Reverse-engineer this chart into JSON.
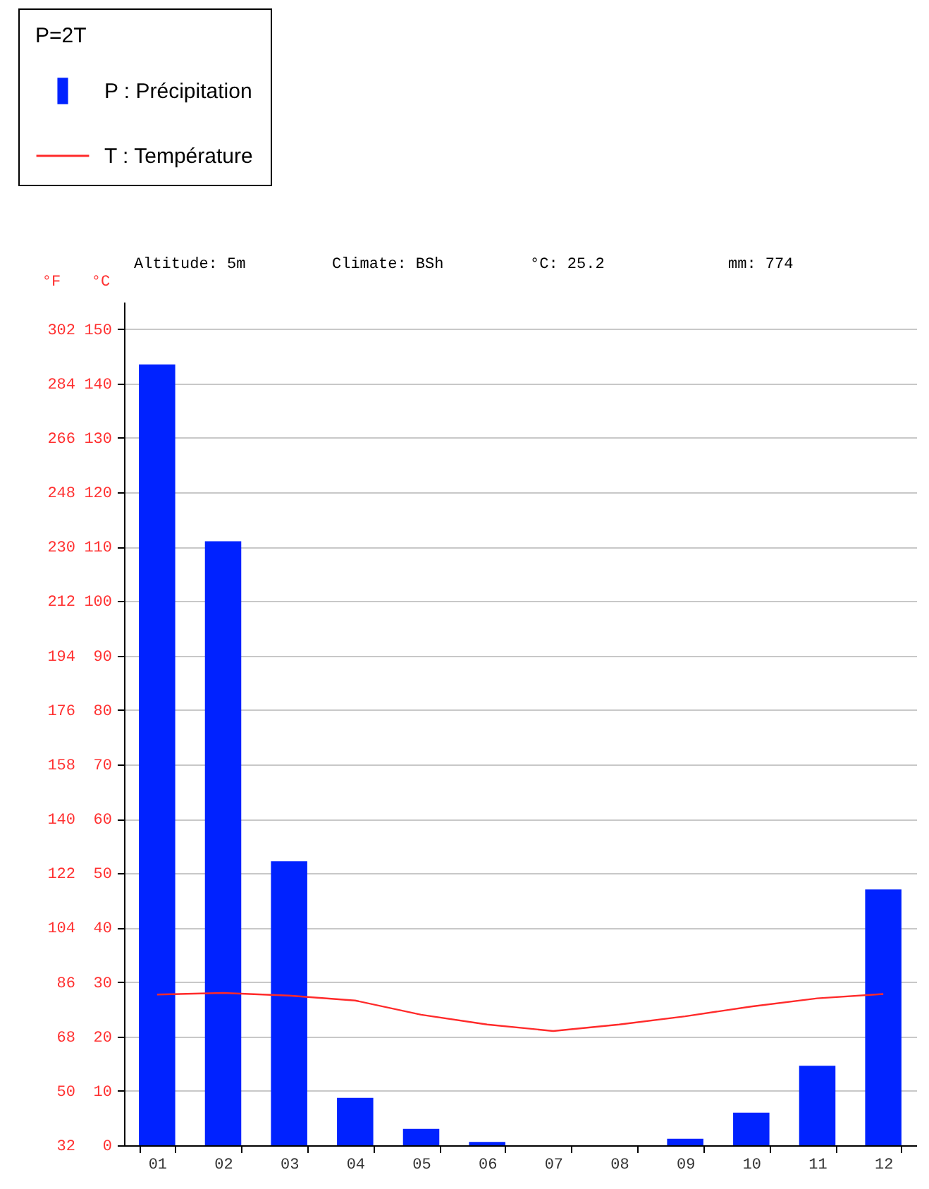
{
  "chart_data": {
    "type": "bar",
    "legend_title": "P=2T",
    "legend": "top left",
    "ylabel": "°C",
    "y2label": "°F",
    "grid": "y",
    "annotations": [
      "Altitude: 5m",
      "Climate: BSh",
      "°C: 25.2",
      "mm: 774"
    ],
    "categories": [
      "01",
      "02",
      "03",
      "04",
      "05",
      "06",
      "07",
      "08",
      "09",
      "10",
      "11",
      "12"
    ],
    "series": [
      {
        "name": "P : Précipitation",
        "color": "#0022ff",
        "values": [
          143.5,
          111,
          52.2,
          8.7,
          3,
          0.6,
          0,
          0,
          1.2,
          6,
          14.6,
          47
        ]
      },
      {
        "name": "T : Température",
        "type": "line",
        "color": "#ff2a2a",
        "values": [
          27.7,
          28,
          27.5,
          26.6,
          24,
          22.2,
          21,
          22.2,
          23.7,
          25.5,
          27,
          27.8
        ]
      }
    ],
    "ylim": [
      0,
      155
    ],
    "yticks": [
      0,
      10,
      20,
      30,
      40,
      50,
      60,
      70,
      80,
      90,
      100,
      110,
      120,
      130,
      140,
      150
    ],
    "y2lim": [
      32,
      311
    ],
    "y2ticks": [
      32,
      50,
      68,
      86,
      104,
      122,
      140,
      158,
      176,
      194,
      212,
      230,
      248,
      266,
      284,
      302
    ]
  }
}
